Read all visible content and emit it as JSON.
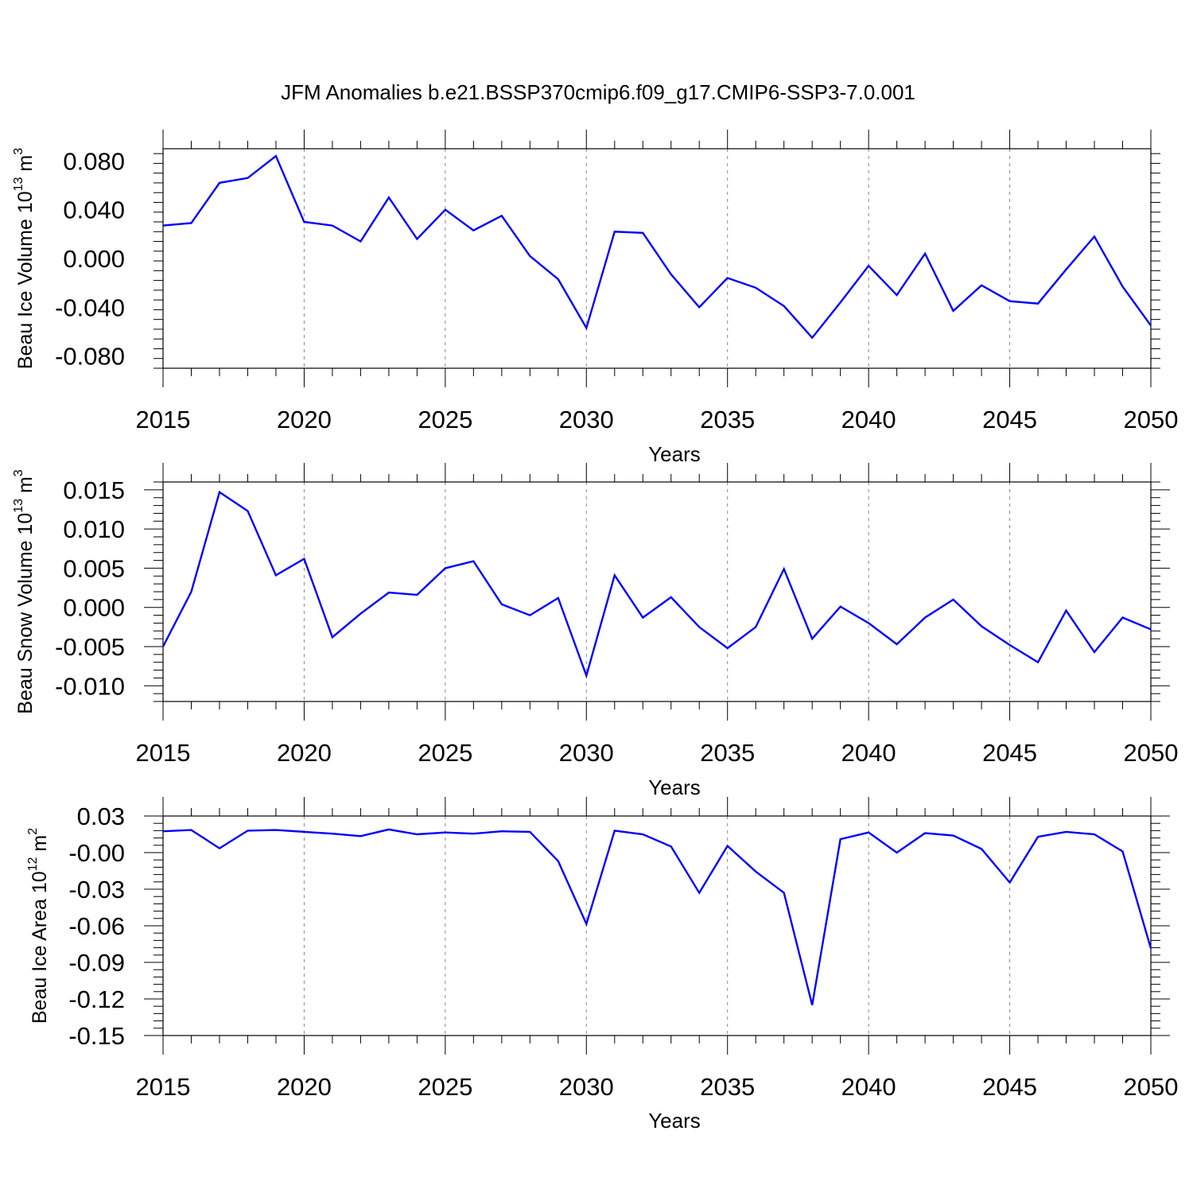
{
  "title": "JFM Anomalies b.e21.BSSP370cmip6.f09_g17.CMIP6-SSP3-7.0.001",
  "colors": {
    "line": "#0000ff",
    "axis": "#000000",
    "grid": "#888888",
    "background": "#ffffff"
  },
  "chart_data": [
    {
      "type": "line",
      "ylabel_main": "Beau Ice Volume 10",
      "ylabel_exp": "13",
      "ylabel_unit": " m",
      "ylabel_unit_exp": "3",
      "xlabel": "Years",
      "xlim": [
        2015,
        2050
      ],
      "ylim": [
        -0.09,
        0.09
      ],
      "x_ticks": [
        2015,
        2020,
        2025,
        2030,
        2035,
        2040,
        2045,
        2050
      ],
      "y_ticks": [
        -0.08,
        -0.04,
        0.0,
        0.04,
        0.08
      ],
      "y_tick_labels": [
        "-0.080",
        "-0.040",
        "0.000",
        "0.040",
        "0.080"
      ],
      "grid": "vertical dashed at labeled years",
      "series": [
        {
          "x": [
            2015,
            2016,
            2017,
            2018,
            2019,
            2020,
            2021,
            2022,
            2023,
            2024,
            2025,
            2026,
            2027,
            2028,
            2029,
            2030,
            2031,
            2032,
            2033,
            2034,
            2035,
            2036,
            2037,
            2038,
            2039,
            2040,
            2041,
            2042,
            2043,
            2044,
            2045,
            2046,
            2047,
            2048,
            2049,
            2050
          ],
          "values": [
            0.027,
            0.029,
            0.062,
            0.066,
            0.084,
            0.03,
            0.027,
            0.014,
            0.05,
            0.016,
            0.04,
            0.023,
            0.035,
            0.002,
            -0.017,
            -0.057,
            0.022,
            0.021,
            -0.013,
            -0.04,
            -0.016,
            -0.024,
            -0.039,
            -0.065,
            -0.036,
            -0.006,
            -0.03,
            0.004,
            -0.043,
            -0.022,
            -0.035,
            -0.037,
            -0.009,
            0.018,
            -0.023,
            -0.055
          ]
        }
      ]
    },
    {
      "type": "line",
      "ylabel_main": "Beau Snow Volume 10",
      "ylabel_exp": "13",
      "ylabel_unit": " m",
      "ylabel_unit_exp": "3",
      "xlabel": "Years",
      "xlim": [
        2015,
        2050
      ],
      "ylim": [
        -0.012,
        0.016
      ],
      "x_ticks": [
        2015,
        2020,
        2025,
        2030,
        2035,
        2040,
        2045,
        2050
      ],
      "y_ticks": [
        -0.01,
        -0.005,
        0.0,
        0.005,
        0.01,
        0.015
      ],
      "y_tick_labels": [
        "-0.010",
        "-0.005",
        "0.000",
        "0.005",
        "0.010",
        "0.015"
      ],
      "grid": "vertical dashed at labeled years",
      "series": [
        {
          "x": [
            2015,
            2016,
            2017,
            2018,
            2019,
            2020,
            2021,
            2022,
            2023,
            2024,
            2025,
            2026,
            2027,
            2028,
            2029,
            2030,
            2031,
            2032,
            2033,
            2034,
            2035,
            2036,
            2037,
            2038,
            2039,
            2040,
            2041,
            2042,
            2043,
            2044,
            2045,
            2046,
            2047,
            2048,
            2049,
            2050
          ],
          "values": [
            -0.005,
            0.002,
            0.0147,
            0.0123,
            0.0041,
            0.0062,
            -0.0038,
            -0.0008,
            0.0019,
            0.0016,
            0.005,
            0.0059,
            0.0004,
            -0.001,
            0.0012,
            -0.0087,
            0.0041,
            -0.0013,
            0.0013,
            -0.0025,
            -0.0052,
            -0.0025,
            0.0049,
            -0.004,
            0.0001,
            -0.002,
            -0.0047,
            -0.0013,
            0.001,
            -0.0024,
            -0.0048,
            -0.007,
            -0.0004,
            -0.0057,
            -0.0013,
            -0.0028
          ]
        }
      ]
    },
    {
      "type": "line",
      "ylabel_main": "Beau Ice Area 10",
      "ylabel_exp": "12",
      "ylabel_unit": " m",
      "ylabel_unit_exp": "2",
      "xlabel": "Years",
      "xlim": [
        2015,
        2050
      ],
      "ylim": [
        -0.15,
        0.03
      ],
      "x_ticks": [
        2015,
        2020,
        2025,
        2030,
        2035,
        2040,
        2045,
        2050
      ],
      "y_ticks": [
        -0.15,
        -0.12,
        -0.09,
        -0.06,
        -0.03,
        0.0,
        0.03
      ],
      "y_tick_labels": [
        "-0.15",
        "-0.12",
        "-0.09",
        "-0.06",
        "-0.03",
        "-0.00",
        "0.03"
      ],
      "grid": "vertical dashed at labeled years",
      "series": [
        {
          "x": [
            2015,
            2016,
            2017,
            2018,
            2019,
            2020,
            2021,
            2022,
            2023,
            2024,
            2025,
            2026,
            2027,
            2028,
            2029,
            2030,
            2031,
            2032,
            2033,
            2034,
            2035,
            2036,
            2037,
            2038,
            2039,
            2040,
            2041,
            2042,
            2043,
            2044,
            2045,
            2046,
            2047,
            2048,
            2049,
            2050
          ],
          "values": [
            0.0175,
            0.0185,
            0.0035,
            0.018,
            0.0185,
            0.017,
            0.0155,
            0.0135,
            0.019,
            0.015,
            0.0165,
            0.0155,
            0.0175,
            0.017,
            -0.007,
            -0.0585,
            0.018,
            0.015,
            0.005,
            -0.033,
            0.0055,
            -0.0155,
            -0.033,
            -0.125,
            0.011,
            0.0165,
            0.0,
            0.016,
            0.014,
            0.003,
            -0.0245,
            0.013,
            0.017,
            0.015,
            0.001,
            -0.0785
          ]
        }
      ]
    }
  ]
}
